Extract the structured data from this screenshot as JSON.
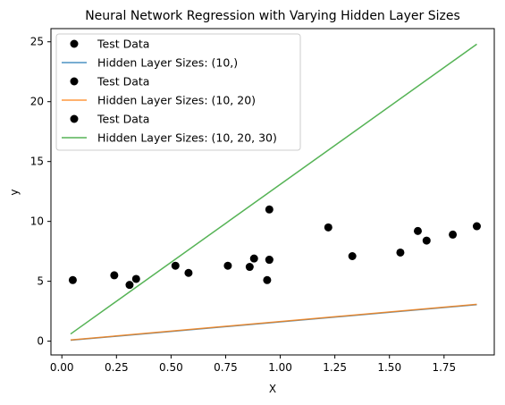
{
  "chart_data": {
    "type": "scatter",
    "title": "Neural Network Regression with Varying Hidden Layer Sizes",
    "xlabel": "X",
    "ylabel": "y",
    "xlim": [
      -0.05,
      1.98
    ],
    "ylim": [
      -1.15,
      26.1
    ],
    "x_ticks": [
      "0.00",
      "0.25",
      "0.50",
      "0.75",
      "1.00",
      "1.25",
      "1.50",
      "1.75"
    ],
    "y_ticks": [
      "0",
      "5",
      "10",
      "15",
      "20",
      "25"
    ],
    "grid": false,
    "legend_placement": "top-left",
    "test_data": {
      "x": [
        0.05,
        0.24,
        0.31,
        0.34,
        0.52,
        0.58,
        0.76,
        0.86,
        0.88,
        0.94,
        0.95,
        0.95,
        0.95,
        1.22,
        1.33,
        1.55,
        1.63,
        1.67,
        1.79,
        1.9
      ],
      "y": [
        5.1,
        5.5,
        4.7,
        5.2,
        6.3,
        5.7,
        6.3,
        6.2,
        6.9,
        5.1,
        6.8,
        6.8,
        11.0,
        9.5,
        7.1,
        7.4,
        9.2,
        8.4,
        8.9,
        9.6
      ],
      "color": "#000000"
    },
    "series": [
      {
        "name": "Hidden Layer Sizes: (10,)",
        "x": [
          0.04,
          1.9
        ],
        "y": [
          0.08,
          3.05
        ],
        "color": "#1f77b4"
      },
      {
        "name": "Hidden Layer Sizes: (10, 20)",
        "x": [
          0.04,
          1.9
        ],
        "y": [
          0.1,
          3.08
        ],
        "color": "#ff7f0e"
      },
      {
        "name": "Hidden Layer Sizes: (10, 20, 30)",
        "x": [
          0.04,
          1.9
        ],
        "y": [
          0.6,
          24.8
        ],
        "color": "#2ca02c"
      }
    ],
    "legend": [
      {
        "kind": "marker",
        "label": "Test Data",
        "color": "#000000"
      },
      {
        "kind": "line",
        "label": "Hidden Layer Sizes: (10,)",
        "color": "#1f77b4"
      },
      {
        "kind": "marker",
        "label": "Test Data",
        "color": "#000000"
      },
      {
        "kind": "line",
        "label": "Hidden Layer Sizes: (10, 20)",
        "color": "#ff7f0e"
      },
      {
        "kind": "marker",
        "label": "Test Data",
        "color": "#000000"
      },
      {
        "kind": "line",
        "label": "Hidden Layer Sizes: (10, 20, 30)",
        "color": "#2ca02c"
      }
    ]
  }
}
